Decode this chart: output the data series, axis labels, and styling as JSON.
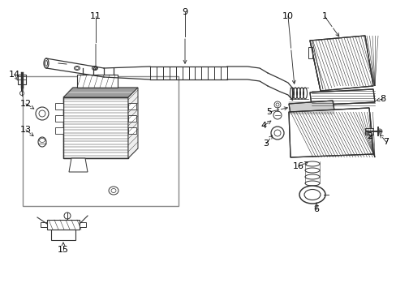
{
  "bg_color": "#ffffff",
  "line_color": "#333333",
  "label_color": "#000000",
  "fig_width": 4.89,
  "fig_height": 3.6,
  "dpi": 100,
  "xlim": [
    0,
    489
  ],
  "ylim": [
    0,
    360
  ]
}
